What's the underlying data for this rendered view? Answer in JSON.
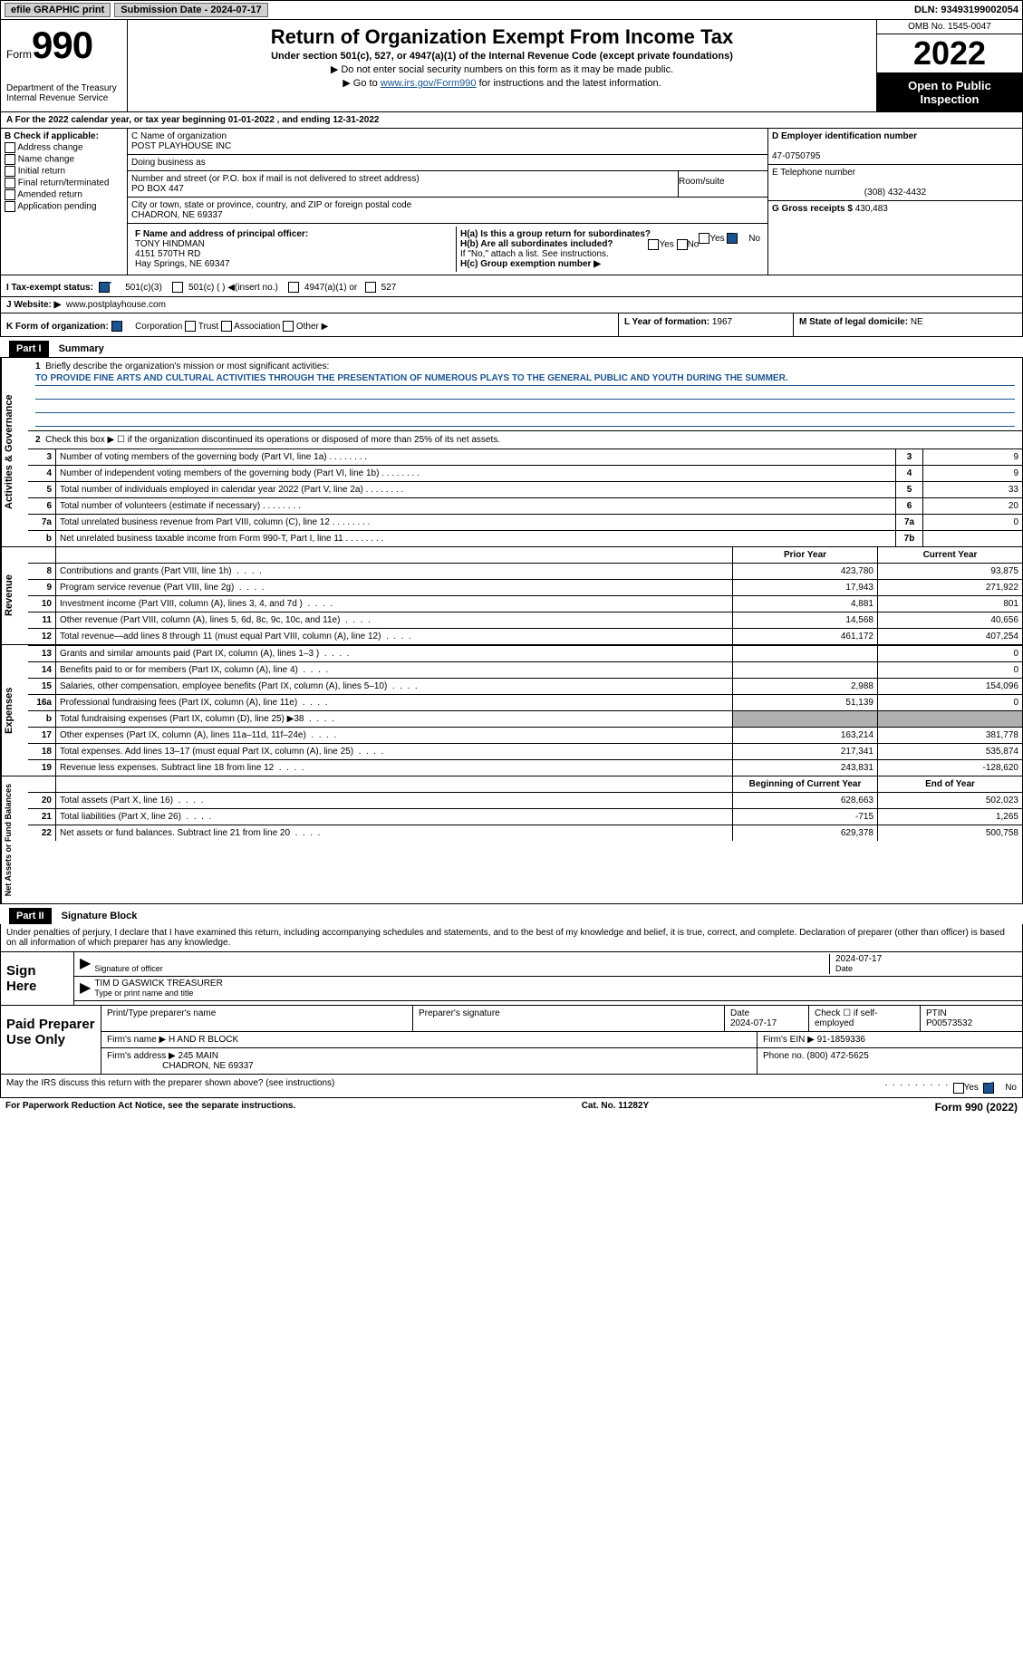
{
  "topbar": {
    "efile": "efile GRAPHIC print",
    "submission_label": "Submission Date - ",
    "submission_date": "2024-07-17",
    "dln_label": "DLN: ",
    "dln": "93493199002054"
  },
  "header": {
    "form_word": "Form",
    "form_num": "990",
    "dept": "Department of the Treasury\nInternal Revenue Service",
    "title": "Return of Organization Exempt From Income Tax",
    "subtitle": "Under section 501(c), 527, or 4947(a)(1) of the Internal Revenue Code (except private foundations)",
    "note1": "▶ Do not enter social security numbers on this form as it may be made public.",
    "note2_pre": "▶ Go to ",
    "note2_link": "www.irs.gov/Form990",
    "note2_post": " for instructions and the latest information.",
    "omb": "OMB No. 1545-0047",
    "year": "2022",
    "pub": "Open to Public Inspection"
  },
  "a_line": "A For the 2022 calendar year, or tax year beginning 01-01-2022   , and ending 12-31-2022",
  "b": {
    "label": "B Check if applicable:",
    "opts": [
      "Address change",
      "Name change",
      "Initial return",
      "Final return/terminated",
      "Amended return",
      "Application pending"
    ]
  },
  "c": {
    "name_label": "C Name of organization",
    "name": "POST PLAYHOUSE INC",
    "dba_label": "Doing business as",
    "street_label": "Number and street (or P.O. box if mail is not delivered to street address)",
    "room_label": "Room/suite",
    "street": "PO BOX 447",
    "city_label": "City or town, state or province, country, and ZIP or foreign postal code",
    "city": "CHADRON, NE  69337"
  },
  "d": {
    "label": "D Employer identification number",
    "val": "47-0750795"
  },
  "e": {
    "label": "E Telephone number",
    "val": "(308) 432-4432"
  },
  "g": {
    "label": "G Gross receipts $",
    "val": "430,483"
  },
  "f": {
    "label": "F Name and address of principal officer:",
    "name": "TONY HINDMAN",
    "addr1": "4151 570TH RD",
    "addr2": "Hay Springs, NE  69347"
  },
  "h": {
    "a_label": "H(a)  Is this a group return for subordinates?",
    "b_label": "H(b)  Are all subordinates included?",
    "b_note": "If \"No,\" attach a list. See instructions.",
    "c_label": "H(c)  Group exemption number ▶",
    "yes": "Yes",
    "no": "No"
  },
  "i": {
    "label": "I  Tax-exempt status:",
    "opts": [
      "501(c)(3)",
      "501(c) (  ) ◀(insert no.)",
      "4947(a)(1) or",
      "527"
    ]
  },
  "j": {
    "label": "J  Website: ▶",
    "val": "www.postplayhouse.com"
  },
  "k": {
    "label": "K Form of organization:",
    "opts": [
      "Corporation",
      "Trust",
      "Association",
      "Other ▶"
    ]
  },
  "l": {
    "label": "L Year of formation:",
    "val": "1967"
  },
  "m": {
    "label": "M State of legal domicile:",
    "val": "NE"
  },
  "parts": {
    "p1_num": "Part I",
    "p1_title": "Summary",
    "p2_num": "Part II",
    "p2_title": "Signature Block"
  },
  "summary": {
    "vtabs": [
      "Activities & Governance",
      "Revenue",
      "Expenses",
      "Net Assets or Fund Balances"
    ],
    "line1_label": "Briefly describe the organization's mission or most significant activities:",
    "line1_desc": "TO PROVIDE FINE ARTS AND CULTURAL ACTIVITIES THROUGH THE PRESENTATION OF NUMEROUS PLAYS TO THE GENERAL PUBLIC AND YOUTH DURING THE SUMMER.",
    "line2_label": "Check this box ▶ ☐ if the organization discontinued its operations or disposed of more than 25% of its net assets.",
    "lines_single": [
      {
        "n": "3",
        "t": "Number of voting members of the governing body (Part VI, line 1a)",
        "box": "3",
        "v": "9"
      },
      {
        "n": "4",
        "t": "Number of independent voting members of the governing body (Part VI, line 1b)",
        "box": "4",
        "v": "9"
      },
      {
        "n": "5",
        "t": "Total number of individuals employed in calendar year 2022 (Part V, line 2a)",
        "box": "5",
        "v": "33"
      },
      {
        "n": "6",
        "t": "Total number of volunteers (estimate if necessary)",
        "box": "6",
        "v": "20"
      },
      {
        "n": "7a",
        "t": "Total unrelated business revenue from Part VIII, column (C), line 12",
        "box": "7a",
        "v": "0"
      },
      {
        "n": "b",
        "t": "Net unrelated business taxable income from Form 990-T, Part I, line 11",
        "box": "7b",
        "v": ""
      }
    ],
    "col_headers": {
      "prior": "Prior Year",
      "current": "Current Year",
      "beg": "Beginning of Current Year",
      "end": "End of Year"
    },
    "revenue": [
      {
        "n": "8",
        "t": "Contributions and grants (Part VIII, line 1h)",
        "p": "423,780",
        "c": "93,875"
      },
      {
        "n": "9",
        "t": "Program service revenue (Part VIII, line 2g)",
        "p": "17,943",
        "c": "271,922"
      },
      {
        "n": "10",
        "t": "Investment income (Part VIII, column (A), lines 3, 4, and 7d )",
        "p": "4,881",
        "c": "801"
      },
      {
        "n": "11",
        "t": "Other revenue (Part VIII, column (A), lines 5, 6d, 8c, 9c, 10c, and 11e)",
        "p": "14,568",
        "c": "40,656"
      },
      {
        "n": "12",
        "t": "Total revenue—add lines 8 through 11 (must equal Part VIII, column (A), line 12)",
        "p": "461,172",
        "c": "407,254"
      }
    ],
    "expenses": [
      {
        "n": "13",
        "t": "Grants and similar amounts paid (Part IX, column (A), lines 1–3 )",
        "p": "",
        "c": "0"
      },
      {
        "n": "14",
        "t": "Benefits paid to or for members (Part IX, column (A), line 4)",
        "p": "",
        "c": "0"
      },
      {
        "n": "15",
        "t": "Salaries, other compensation, employee benefits (Part IX, column (A), lines 5–10)",
        "p": "2,988",
        "c": "154,096"
      },
      {
        "n": "16a",
        "t": "Professional fundraising fees (Part IX, column (A), line 11e)",
        "p": "51,139",
        "c": "0"
      },
      {
        "n": "b",
        "t": "Total fundraising expenses (Part IX, column (D), line 25) ▶38",
        "p": "grey",
        "c": "grey"
      },
      {
        "n": "17",
        "t": "Other expenses (Part IX, column (A), lines 11a–11d, 11f–24e)",
        "p": "163,214",
        "c": "381,778"
      },
      {
        "n": "18",
        "t": "Total expenses. Add lines 13–17 (must equal Part IX, column (A), line 25)",
        "p": "217,341",
        "c": "535,874"
      },
      {
        "n": "19",
        "t": "Revenue less expenses. Subtract line 18 from line 12",
        "p": "243,831",
        "c": "-128,620"
      }
    ],
    "net": [
      {
        "n": "20",
        "t": "Total assets (Part X, line 16)",
        "p": "628,663",
        "c": "502,023"
      },
      {
        "n": "21",
        "t": "Total liabilities (Part X, line 26)",
        "p": "-715",
        "c": "1,265"
      },
      {
        "n": "22",
        "t": "Net assets or fund balances. Subtract line 21 from line 20",
        "p": "629,378",
        "c": "500,758"
      }
    ]
  },
  "sig": {
    "declare": "Under penalties of perjury, I declare that I have examined this return, including accompanying schedules and statements, and to the best of my knowledge and belief, it is true, correct, and complete. Declaration of preparer (other than officer) is based on all information of which preparer has any knowledge.",
    "sign_here": "Sign Here",
    "sig_of_officer": "Signature of officer",
    "date": "Date",
    "sig_date": "2024-07-17",
    "printed": "TIM D GASWICK  TREASURER",
    "printed_label": "Type or print name and title",
    "paid": "Paid Preparer Use Only",
    "prep_name_label": "Print/Type preparer's name",
    "prep_sig_label": "Preparer's signature",
    "prep_date_label": "Date",
    "prep_date": "2024-07-17",
    "check_if": "Check ☐ if self-employed",
    "ptin_label": "PTIN",
    "ptin": "P00573532",
    "firm_name_label": "Firm's name    ▶",
    "firm_name": "H AND R BLOCK",
    "firm_ein_label": "Firm's EIN ▶",
    "firm_ein": "91-1859336",
    "firm_addr_label": "Firm's address ▶",
    "firm_addr": "245 MAIN",
    "firm_addr2": "CHADRON, NE  69337",
    "phone_label": "Phone no.",
    "phone": "(800) 472-5625",
    "may_irs": "May the IRS discuss this return with the preparer shown above? (see instructions)"
  },
  "footer": {
    "left": "For Paperwork Reduction Act Notice, see the separate instructions.",
    "mid": "Cat. No. 11282Y",
    "right": "Form 990 (2022)"
  }
}
